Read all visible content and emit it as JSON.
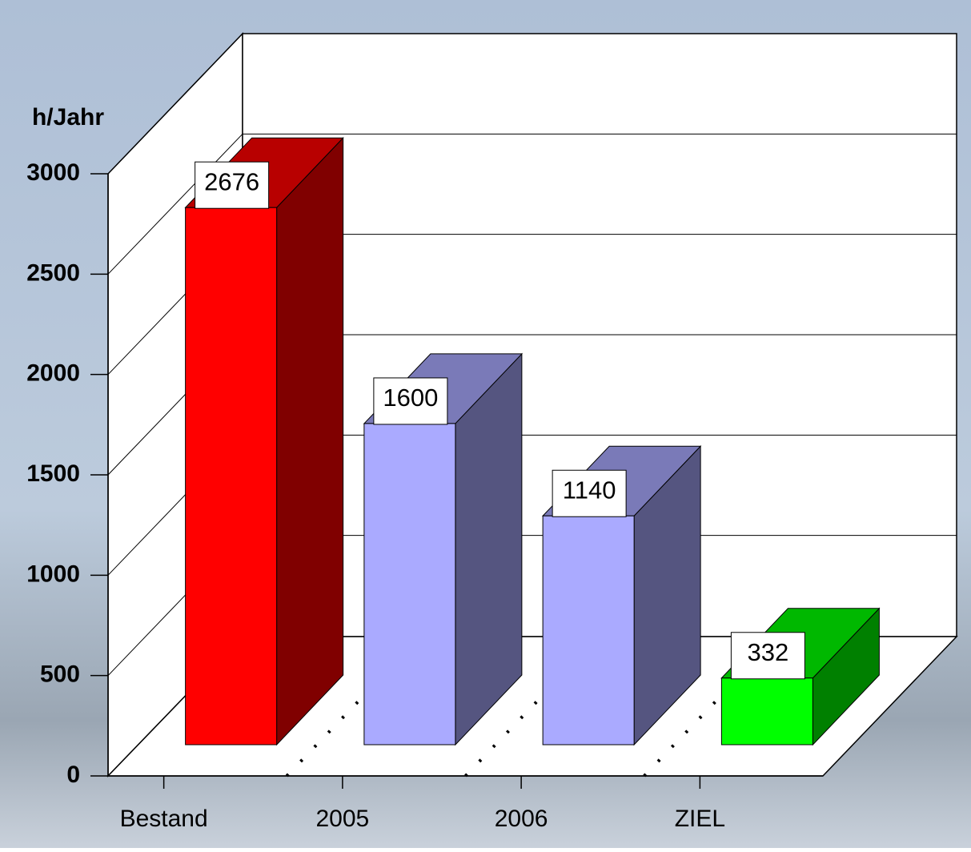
{
  "chart_data": {
    "type": "bar3d",
    "y_label": "h/Jahr",
    "categories": [
      "Bestand",
      "2005",
      "2006",
      "ZIEL"
    ],
    "values": [
      2676,
      1600,
      1140,
      332
    ],
    "colors": [
      "#ff0000",
      "#aaaaff",
      "#aaaaff",
      "#00ff00"
    ],
    "ylim": [
      0,
      3000
    ],
    "yticks": [
      0,
      500,
      1000,
      1500,
      2000,
      2500,
      3000
    ],
    "grid": true
  }
}
